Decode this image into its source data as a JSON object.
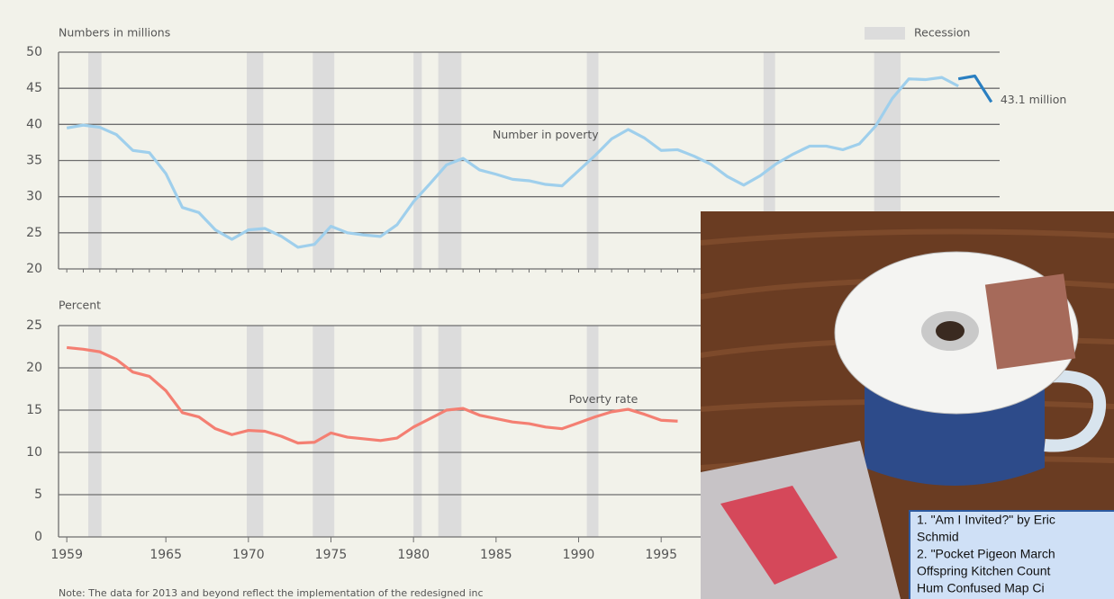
{
  "chart_data": [
    {
      "type": "line",
      "y_label": "Numbers in millions",
      "legend_label": "Recession",
      "legend": "top-right",
      "grid": true,
      "recession_color": "#dcdcdc",
      "recessions": [
        [
          1960.3,
          1961.1
        ],
        [
          1969.9,
          1970.9
        ],
        [
          1973.9,
          1975.2
        ],
        [
          1980.0,
          1980.5
        ],
        [
          1981.5,
          1982.9
        ],
        [
          1990.5,
          1991.2
        ],
        [
          2001.2,
          2001.9
        ],
        [
          2007.9,
          2009.5
        ]
      ],
      "x": [
        1959,
        1960,
        1961,
        1962,
        1963,
        1964,
        1965,
        1966,
        1967,
        1968,
        1969,
        1970,
        1971,
        1972,
        1973,
        1974,
        1975,
        1976,
        1977,
        1978,
        1979,
        1980,
        1981,
        1982,
        1983,
        1984,
        1985,
        1986,
        1987,
        1988,
        1989,
        1990,
        1991,
        1992,
        1993,
        1994,
        1995,
        1996,
        1997,
        1998,
        1999,
        2000,
        2001,
        2002,
        2003,
        2004,
        2005,
        2006,
        2007,
        2008,
        2009,
        2010,
        2011,
        2012,
        2013,
        2014,
        2015
      ],
      "series": [
        {
          "color": "#9fcfec",
          "values": [
            39.5,
            39.9,
            39.6,
            38.6,
            36.4,
            36.1,
            33.2,
            28.5,
            27.8,
            25.4,
            24.1,
            25.4,
            25.6,
            24.5,
            23.0,
            23.4,
            25.9,
            25.0,
            24.7,
            24.5,
            26.1,
            29.3,
            31.8,
            34.4,
            35.3,
            33.7,
            33.1,
            32.4,
            32.2,
            31.7,
            31.5,
            33.6,
            35.7,
            38.0,
            39.3,
            38.1,
            36.4,
            36.5,
            35.6,
            34.5,
            32.8,
            31.6,
            32.9,
            34.6,
            35.9,
            37.0,
            37.0,
            36.5,
            37.3,
            39.8,
            43.6,
            46.3,
            46.2,
            46.5,
            45.3,
            null,
            null
          ]
        },
        {
          "color": "#2a7fc1",
          "values": [
            null,
            null,
            null,
            null,
            null,
            null,
            null,
            null,
            null,
            null,
            null,
            null,
            null,
            null,
            null,
            null,
            null,
            null,
            null,
            null,
            null,
            null,
            null,
            null,
            null,
            null,
            null,
            null,
            null,
            null,
            null,
            null,
            null,
            null,
            null,
            null,
            null,
            null,
            null,
            null,
            null,
            null,
            null,
            null,
            null,
            null,
            null,
            null,
            null,
            null,
            null,
            null,
            null,
            null,
            46.3,
            46.7,
            43.1
          ],
          "value_labels": [
            null,
            null,
            null,
            null,
            null,
            null,
            null,
            null,
            null,
            null,
            null,
            null,
            null,
            null,
            null,
            null,
            null,
            null,
            null,
            null,
            null,
            null,
            null,
            null,
            null,
            null,
            null,
            null,
            null,
            null,
            null,
            null,
            null,
            null,
            null,
            null,
            null,
            null,
            null,
            null,
            null,
            null,
            null,
            null,
            null,
            null,
            null,
            null,
            null,
            null,
            null,
            null,
            null,
            null,
            null,
            null,
            "43.1 million"
          ]
        }
      ],
      "annotation": {
        "text": "Number in poverty",
        "x": 1988,
        "y": 38.5
      },
      "xlim": [
        1958.5,
        2015.5
      ],
      "ylim": [
        20,
        50
      ],
      "yticks": [
        20,
        25,
        30,
        35,
        40,
        45,
        50
      ]
    },
    {
      "type": "line",
      "y_label": "Percent",
      "grid": true,
      "recession_color": "#dcdcdc",
      "recessions": [
        [
          1960.3,
          1961.1
        ],
        [
          1969.9,
          1970.9
        ],
        [
          1973.9,
          1975.2
        ],
        [
          1980.0,
          1980.5
        ],
        [
          1981.5,
          1982.9
        ],
        [
          1990.5,
          1991.2
        ]
      ],
      "x": [
        1959,
        1960,
        1961,
        1962,
        1963,
        1964,
        1965,
        1966,
        1967,
        1968,
        1969,
        1970,
        1971,
        1972,
        1973,
        1974,
        1975,
        1976,
        1977,
        1978,
        1979,
        1980,
        1981,
        1982,
        1983,
        1984,
        1985,
        1986,
        1987,
        1988,
        1989,
        1990,
        1991,
        1992,
        1993,
        1994,
        1995,
        1996
      ],
      "series": [
        {
          "color": "#f47f72",
          "values": [
            22.4,
            22.2,
            21.9,
            21.0,
            19.5,
            19.0,
            17.3,
            14.7,
            14.2,
            12.8,
            12.1,
            12.6,
            12.5,
            11.9,
            11.1,
            11.2,
            12.3,
            11.8,
            11.6,
            11.4,
            11.7,
            13.0,
            14.0,
            15.0,
            15.2,
            14.4,
            14.0,
            13.6,
            13.4,
            13.0,
            12.8,
            13.5,
            14.2,
            14.8,
            15.1,
            14.5,
            13.8,
            13.7
          ]
        }
      ],
      "annotation": {
        "text": "Poverty rate",
        "x": 1991.5,
        "y": 16.2
      },
      "xlim": [
        1958.5,
        2015.5
      ],
      "xticks": [
        1959,
        1965,
        1970,
        1975,
        1980,
        1985,
        1990,
        1995
      ],
      "ylim": [
        0,
        25
      ],
      "yticks": [
        0,
        5,
        10,
        15,
        20,
        25
      ]
    }
  ],
  "note": "Note: The data for 2013 and beyond reflect the implementation of the redesigned inc",
  "overlay": {
    "card_lines": [
      "1. \"Am I Invited?\" by Eric",
      "Schmid",
      "2. \"Pocket Pigeon March",
      "Offspring Kitchen Count",
      "Hum Confused Map Ci"
    ]
  }
}
